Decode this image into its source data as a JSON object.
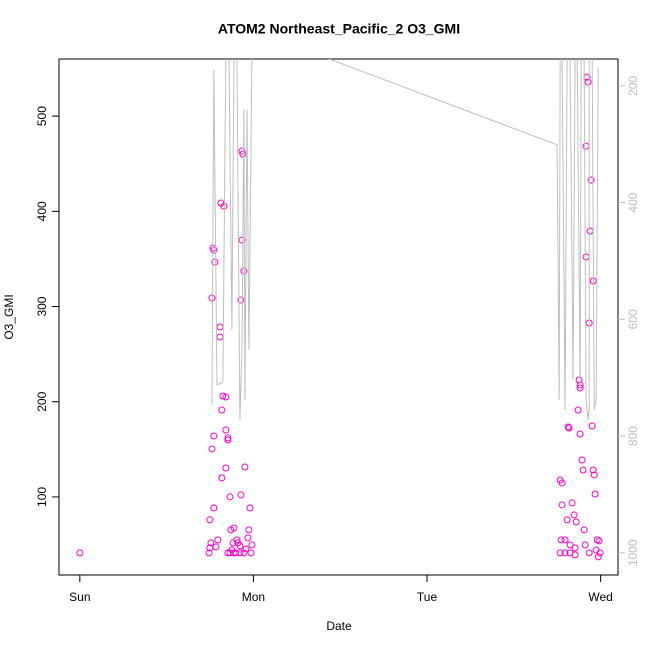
{
  "chart_data": {
    "type": "scatter",
    "title": "ATOM2 Northeast_Pacific_2 O3_GMI",
    "xlabel": "Date",
    "ylabel": "O3_GMI",
    "xlim": [
      -0.12,
      3.1
    ],
    "xticks": [
      {
        "value": 0,
        "label": "Sun"
      },
      {
        "value": 1,
        "label": "Mon"
      },
      {
        "value": 2,
        "label": "Tue"
      },
      {
        "value": 3,
        "label": "Wed"
      }
    ],
    "ylim": [
      18,
      560
    ],
    "yticks": [
      100,
      200,
      300,
      400,
      500
    ],
    "y2lim": [
      1038,
      154
    ],
    "y2ticks": [
      200,
      400,
      600,
      800,
      1000
    ],
    "series": [
      {
        "type": "scatter",
        "color": "#ff00cc",
        "x": [
          0,
          0.744,
          0.749,
          0.755,
          0.749,
          0.772,
          0.761,
          0.772,
          0.761,
          0.767,
          0.772,
          0.778,
          0.807,
          0.807,
          0.818,
          0.824,
          0.818,
          0.813,
          0.83,
          0.841,
          0.841,
          0.853,
          0.841,
          0.853,
          0.865,
          0.87,
          0.882,
          0.888,
          0.899,
          0.905,
          0.922,
          0.922,
          0.928,
          0.928,
          0.934,
          0.934,
          0.939,
          0.945,
          0.951,
          0.968,
          0.974,
          0.98,
          0.991,
          0.986,
          0.795,
          0.784,
          0.876,
          0.853,
          0.865,
          0.888,
          0.911,
          0.957,
          0.945,
          2.767,
          2.772,
          2.767,
          2.778,
          2.778,
          2.795,
          2.807,
          2.813,
          2.818,
          2.824,
          2.836,
          2.847,
          2.853,
          2.859,
          2.87,
          2.876,
          2.882,
          2.882,
          2.882,
          2.893,
          2.899,
          2.905,
          2.911,
          2.916,
          2.916,
          2.922,
          2.928,
          2.934,
          2.934,
          2.939,
          2.945,
          2.951,
          2.957,
          2.957,
          2.963,
          2.968,
          2.974,
          2.98,
          2.986,
          2.991,
          2.997,
          2.795,
          2.824,
          2.853
        ],
        "values": [
          41.2,
          41.2,
          46.5,
          51.7,
          75.9,
          88.5,
          150.4,
          164,
          308.9,
          361.4,
          359.3,
          346.7,
          278.5,
          268,
          120,
          206,
          191.3,
          408.7,
          405.5,
          205,
          170.3,
          162,
          130.4,
          159.8,
          100,
          65.4,
          51.7,
          67.5,
          41.2,
          54.9,
          41.2,
          48.6,
          102.1,
          306.8,
          369.8,
          463.3,
          460.1,
          337.3,
          131.5,
          57,
          65.4,
          88.5,
          49.6,
          41.2,
          54.9,
          47.5,
          44.3,
          41.2,
          41.2,
          41.2,
          51.7,
          45.4,
          41.2,
          41.2,
          54.9,
          117.8,
          114.7,
          91.6,
          54.9,
          75.9,
          173.5,
          172.4,
          49.6,
          93.7,
          81.1,
          39.1,
          73.8,
          191.3,
          222.8,
          214.4,
          217.6,
          166.1,
          138.8,
          128.3,
          65.4,
          49.6,
          352,
          468.5,
          541,
          535.7,
          282.7,
          41.2,
          379.3,
          432.8,
          174.5,
          326.8,
          128.3,
          123.1,
          103.1,
          44.3,
          54.9,
          37,
          53.8,
          41.2,
          41.2,
          41.2,
          46.5
        ]
      },
      {
        "type": "line",
        "axis": "y2",
        "color": "#bebebe",
        "x": [
          0.761,
          0.772,
          0.79,
          0.818,
          0.824,
          0.841,
          0.859,
          0.876,
          0.888,
          0.905,
          0.922,
          0.934,
          0.945,
          0.951,
          0.963,
          0.974,
          0.98,
          0.991,
          1.401,
          2.749,
          2.761,
          2.767,
          2.778,
          2.795,
          2.807,
          2.824,
          2.841,
          2.853,
          2.865,
          2.882,
          2.888,
          2.905,
          2.916,
          2.928,
          2.934,
          2.934,
          2.951,
          2.963,
          2.974,
          2.986
        ],
        "values": [
          746.5,
          172.6,
          712.2,
          708.8,
          703.6,
          150,
          150,
          618,
          150,
          150,
          772,
          652,
          241,
          738,
          241,
          652,
          481,
          150,
          150,
          301,
          738,
          150,
          150,
          755,
          150,
          150,
          703.6,
          150,
          150,
          721,
          150,
          150,
          738,
          772,
          755,
          150,
          150,
          755,
          738,
          169.2
        ]
      }
    ]
  }
}
